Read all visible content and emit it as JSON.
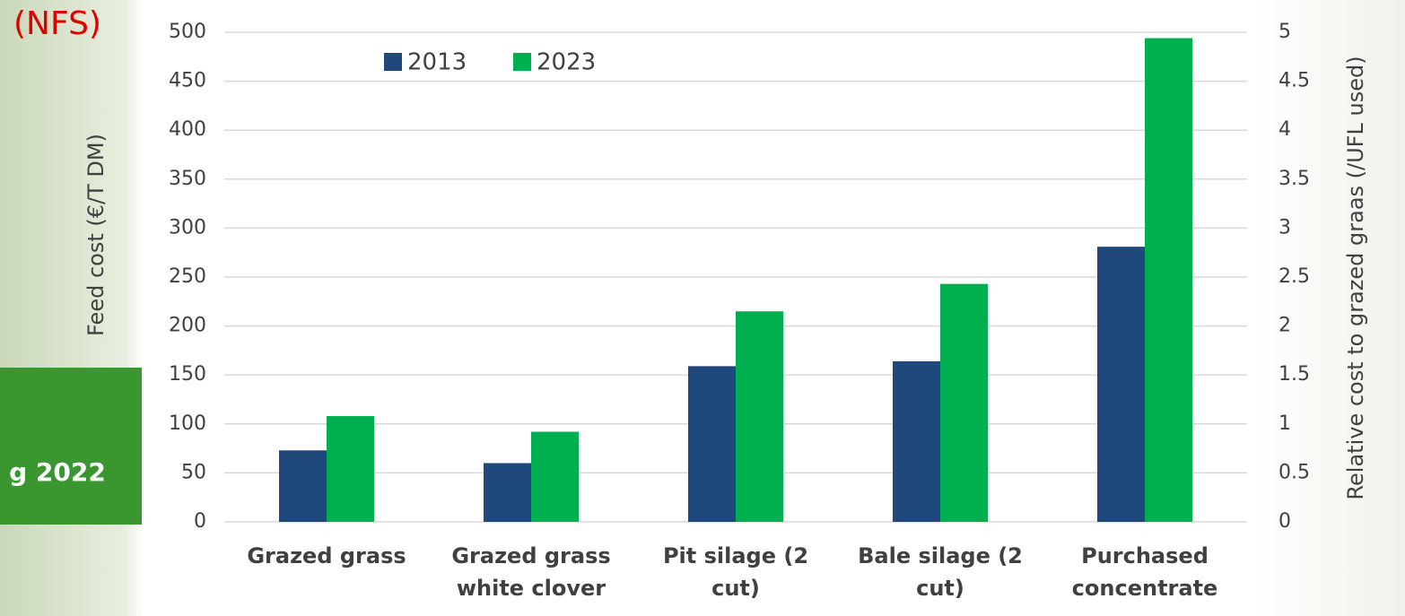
{
  "chart_data": {
    "type": "bar",
    "ylabel": "Feed cost (€/T DM)",
    "y2label": "Relative cost to grazed graas (/UFL used)",
    "categories": [
      "Grazed grass",
      "Grazed grass white clover",
      "Pit silage (2 cut)",
      "Bale silage (2 cut)",
      "Purchased concentrate"
    ],
    "series": [
      {
        "name": "2013",
        "color": "#1f497d",
        "values": [
          73,
          60,
          159,
          164,
          281
        ]
      },
      {
        "name": "2023",
        "color": "#00b050",
        "values": [
          108,
          92,
          215,
          243,
          494
        ]
      }
    ],
    "ylim": [
      0,
      500
    ],
    "yticks": [
      0,
      50,
      100,
      150,
      200,
      250,
      300,
      350,
      400,
      450,
      500
    ],
    "y2lim": [
      0,
      5
    ],
    "y2ticks": [
      0,
      0.5,
      1,
      1.5,
      2,
      2.5,
      3,
      3.5,
      4,
      4.5,
      5
    ],
    "grid": true,
    "legend": "top"
  },
  "annotations": [
    "(NFS)",
    "g 2022"
  ]
}
